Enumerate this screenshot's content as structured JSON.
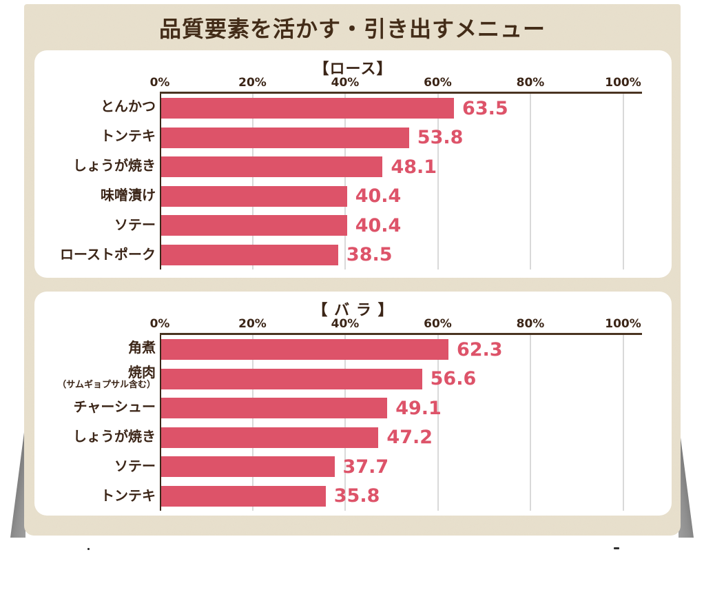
{
  "page_title": "品質要素を活かす・引き出すメニュー",
  "colors": {
    "title_text": "#432c18",
    "label_text": "#3b2517",
    "bar": "#dd5369",
    "value_text": "#dd5369",
    "card_background": "#e8e0cd",
    "panel_background": "#ffffff",
    "gridline": "#d9d9d9",
    "axis_line": "#3a281a"
  },
  "chart_data": [
    {
      "type": "bar",
      "orientation": "horizontal",
      "title": "【ロース】",
      "categories": [
        "とんかつ",
        "トンテキ",
        "しょうが焼き",
        "味噌漬け",
        "ソテー",
        "ローストポーク"
      ],
      "category_notes": [
        "",
        "",
        "",
        "",
        "",
        ""
      ],
      "values": [
        63.5,
        53.8,
        48.1,
        40.4,
        40.4,
        38.5
      ],
      "unit": "%",
      "xlim": [
        0,
        100
      ],
      "x_ticks": [
        0,
        20,
        40,
        60,
        80,
        100
      ],
      "x_tick_labels": [
        "0%",
        "20%",
        "40%",
        "60%",
        "80%",
        "100%"
      ],
      "grid": true,
      "legend": false,
      "bar_color": "#dd5369",
      "value_color": "#dd5369"
    },
    {
      "type": "bar",
      "orientation": "horizontal",
      "title": "【 バ ラ 】",
      "categories": [
        "角煮",
        "焼肉",
        "チャーシュー",
        "しょうが焼き",
        "ソテー",
        "トンテキ"
      ],
      "category_notes": [
        "",
        "（サムギョプサル含む）",
        "",
        "",
        "",
        ""
      ],
      "values": [
        62.3,
        56.6,
        49.1,
        47.2,
        37.7,
        35.8
      ],
      "unit": "%",
      "xlim": [
        0,
        100
      ],
      "x_ticks": [
        0,
        20,
        40,
        60,
        80,
        100
      ],
      "x_tick_labels": [
        "0%",
        "20%",
        "40%",
        "60%",
        "80%",
        "100%"
      ],
      "grid": true,
      "legend": false,
      "bar_color": "#dd5369",
      "value_color": "#dd5369"
    }
  ]
}
